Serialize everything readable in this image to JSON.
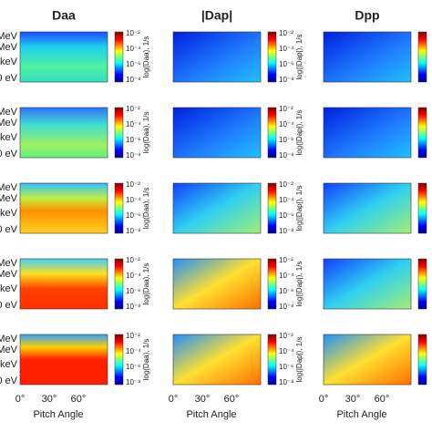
{
  "figure": {
    "columns": [
      {
        "title": "Daa",
        "colorbar_label": "log(Daa), 1/s"
      },
      {
        "title": "|Dap|",
        "colorbar_label": "log(|Dap|), 1/s"
      },
      {
        "title": "Dpp"
      }
    ],
    "colorbar_ticks": [
      "10⁻²",
      "10⁻⁴",
      "10⁻⁶",
      "10⁻⁸"
    ],
    "y_tick_labels": [
      "MeV",
      "MeV",
      "keV",
      "0 eV"
    ],
    "x_tick_labels": [
      "0°",
      "30°",
      "60°"
    ],
    "x_label": "Pitch Angle"
  }
}
